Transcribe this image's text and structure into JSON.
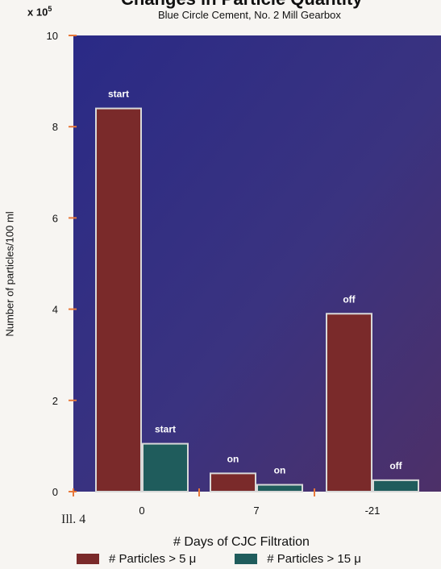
{
  "chart_data": {
    "type": "bar",
    "title": "Changes in Particle Quantity",
    "subtitle": "Blue Circle Cement, No. 2 Mill Gearbox",
    "multiplier": "x 10",
    "multiplier_exp": "5",
    "xlabel": "# Days of CJC Filtration",
    "ylabel": "Number of particles/100 ml",
    "categories": [
      "0",
      "7",
      "-21"
    ],
    "series": [
      {
        "name": "# Particles > 5 μ",
        "color": "#7a2a2a",
        "values": [
          8.4,
          0.4,
          3.9
        ],
        "labels": [
          "start",
          "on",
          "off"
        ]
      },
      {
        "name": "# Particles > 15 μ",
        "color": "#1f5c5c",
        "values": [
          1.05,
          0.15,
          0.25
        ],
        "labels": [
          "start",
          "on",
          "off"
        ]
      }
    ],
    "ylim": [
      0,
      10
    ],
    "yticks": [
      "0",
      "2",
      "4",
      "6",
      "8",
      "10"
    ],
    "grid": false,
    "legend_position": "bottom"
  },
  "caption": "Ill. 4"
}
